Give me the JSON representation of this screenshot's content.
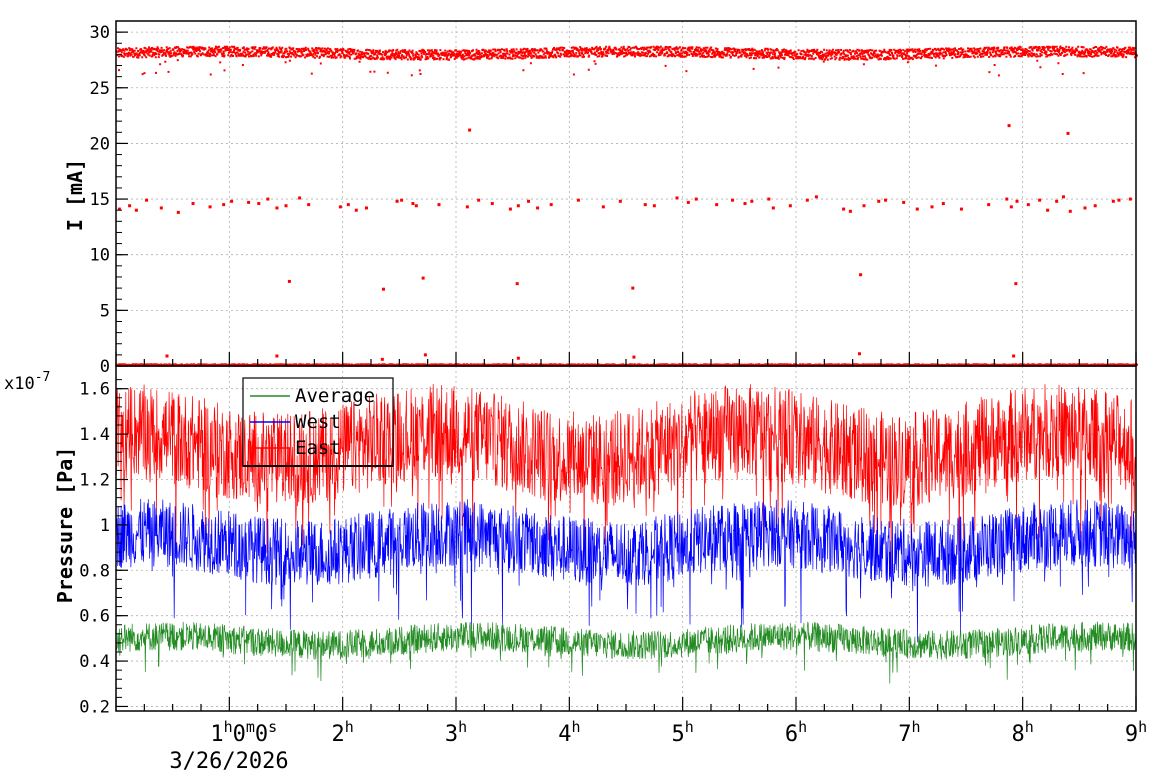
{
  "chart_data": [
    {
      "type": "scatter",
      "ylabel": "I [mA]",
      "ylim": [
        0,
        31
      ],
      "yticks": [
        0,
        5,
        10,
        15,
        20,
        25,
        30
      ],
      "grid": true,
      "series": [
        {
          "color": "#ff0000",
          "baseline_level": 28.2,
          "x": [
            0.03,
            0.12,
            0.18,
            0.27,
            0.4,
            0.55,
            0.68,
            0.83,
            0.95,
            1.02,
            1.17,
            1.26,
            1.34,
            1.42,
            1.5,
            1.62,
            1.7,
            1.98,
            2.05,
            2.12,
            2.21,
            2.48,
            2.52,
            2.62,
            2.65,
            2.85,
            3.1,
            3.2,
            3.32,
            3.48,
            3.55,
            3.64,
            3.72,
            3.84,
            4.08,
            4.3,
            4.45,
            4.67,
            4.75,
            4.95,
            5.05,
            5.12,
            5.3,
            5.44,
            5.55,
            5.61,
            5.76,
            5.8,
            5.95,
            6.1,
            6.18,
            6.42,
            6.48,
            6.6,
            6.73,
            6.79,
            6.95,
            7.07,
            7.2,
            7.3,
            7.46,
            7.7,
            7.86,
            7.9,
            7.95,
            8.05,
            8.15,
            8.22,
            8.3,
            8.36,
            8.42,
            8.55,
            8.64,
            8.8,
            8.85,
            8.95,
            0.45,
            1.42,
            2.35,
            2.73,
            3.55,
            4.57,
            6.56,
            7.92,
            3.12,
            7.88,
            8.4
          ],
          "y": [
            14.1,
            14.4,
            14.0,
            14.9,
            14.2,
            13.8,
            14.6,
            14.3,
            14.5,
            14.8,
            14.7,
            14.6,
            15.0,
            14.2,
            14.4,
            15.1,
            14.5,
            14.3,
            14.5,
            14.0,
            14.2,
            14.8,
            14.9,
            14.6,
            14.4,
            14.5,
            14.3,
            14.9,
            14.6,
            14.1,
            14.4,
            14.8,
            14.2,
            14.5,
            14.9,
            14.3,
            14.8,
            14.5,
            14.4,
            15.1,
            14.7,
            15.0,
            14.5,
            14.9,
            14.6,
            14.8,
            15.0,
            14.2,
            14.4,
            14.9,
            15.2,
            14.1,
            13.9,
            14.4,
            14.8,
            14.9,
            14.7,
            14.1,
            14.3,
            14.6,
            14.1,
            14.5,
            15.0,
            14.3,
            14.8,
            14.5,
            14.9,
            14.0,
            14.8,
            15.2,
            13.9,
            14.2,
            14.4,
            14.8,
            14.9,
            15.0,
            0.9,
            0.9,
            0.6,
            1.0,
            0.7,
            0.8,
            1.1,
            0.9,
            21.2,
            21.6,
            20.9
          ],
          "extra_points": [
            [
              1.53,
              7.6
            ],
            [
              2.71,
              7.9
            ],
            [
              3.54,
              7.4
            ],
            [
              2.36,
              6.9
            ],
            [
              4.56,
              7.0
            ],
            [
              6.57,
              8.2
            ],
            [
              7.94,
              7.4
            ]
          ]
        }
      ]
    },
    {
      "type": "line",
      "ylabel": "Pressure [Pa]",
      "yexponent_label": "x10",
      "yexponent": "-7",
      "ylim": [
        0.18,
        1.7
      ],
      "yticks": [
        0.2,
        0.4,
        0.6,
        0.8,
        1,
        1.2,
        1.4,
        1.6
      ],
      "grid": true,
      "legend_position": "top-left",
      "series": [
        {
          "name": "Average",
          "color": "#228b22",
          "mean": 0.49,
          "band_low": 0.38,
          "band_high": 0.57
        },
        {
          "name": "West",
          "color": "#0000ff",
          "mean": 0.92,
          "band_low": 0.62,
          "band_high": 1.1
        },
        {
          "name": "East",
          "color": "#ff0000",
          "mean": 1.35,
          "band_low": 0.98,
          "band_high": 1.6
        }
      ]
    }
  ],
  "shared_x": {
    "xlim_hours": [
      0,
      9
    ],
    "ticks": [
      {
        "hour": 1,
        "label": "1",
        "sup1": "h",
        "mid": "0",
        "sup2": "m",
        "mid2": "0",
        "sup3": "s"
      },
      {
        "hour": 2,
        "label": "2",
        "sup1": "h"
      },
      {
        "hour": 3,
        "label": "3",
        "sup1": "h"
      },
      {
        "hour": 4,
        "label": "4",
        "sup1": "h"
      },
      {
        "hour": 5,
        "label": "5",
        "sup1": "h"
      },
      {
        "hour": 6,
        "label": "6",
        "sup1": "h"
      },
      {
        "hour": 7,
        "label": "7",
        "sup1": "h"
      },
      {
        "hour": 8,
        "label": "8",
        "sup1": "h"
      },
      {
        "hour": 9,
        "label": "9",
        "sup1": "h"
      }
    ],
    "date_label": "3/26/2026"
  }
}
